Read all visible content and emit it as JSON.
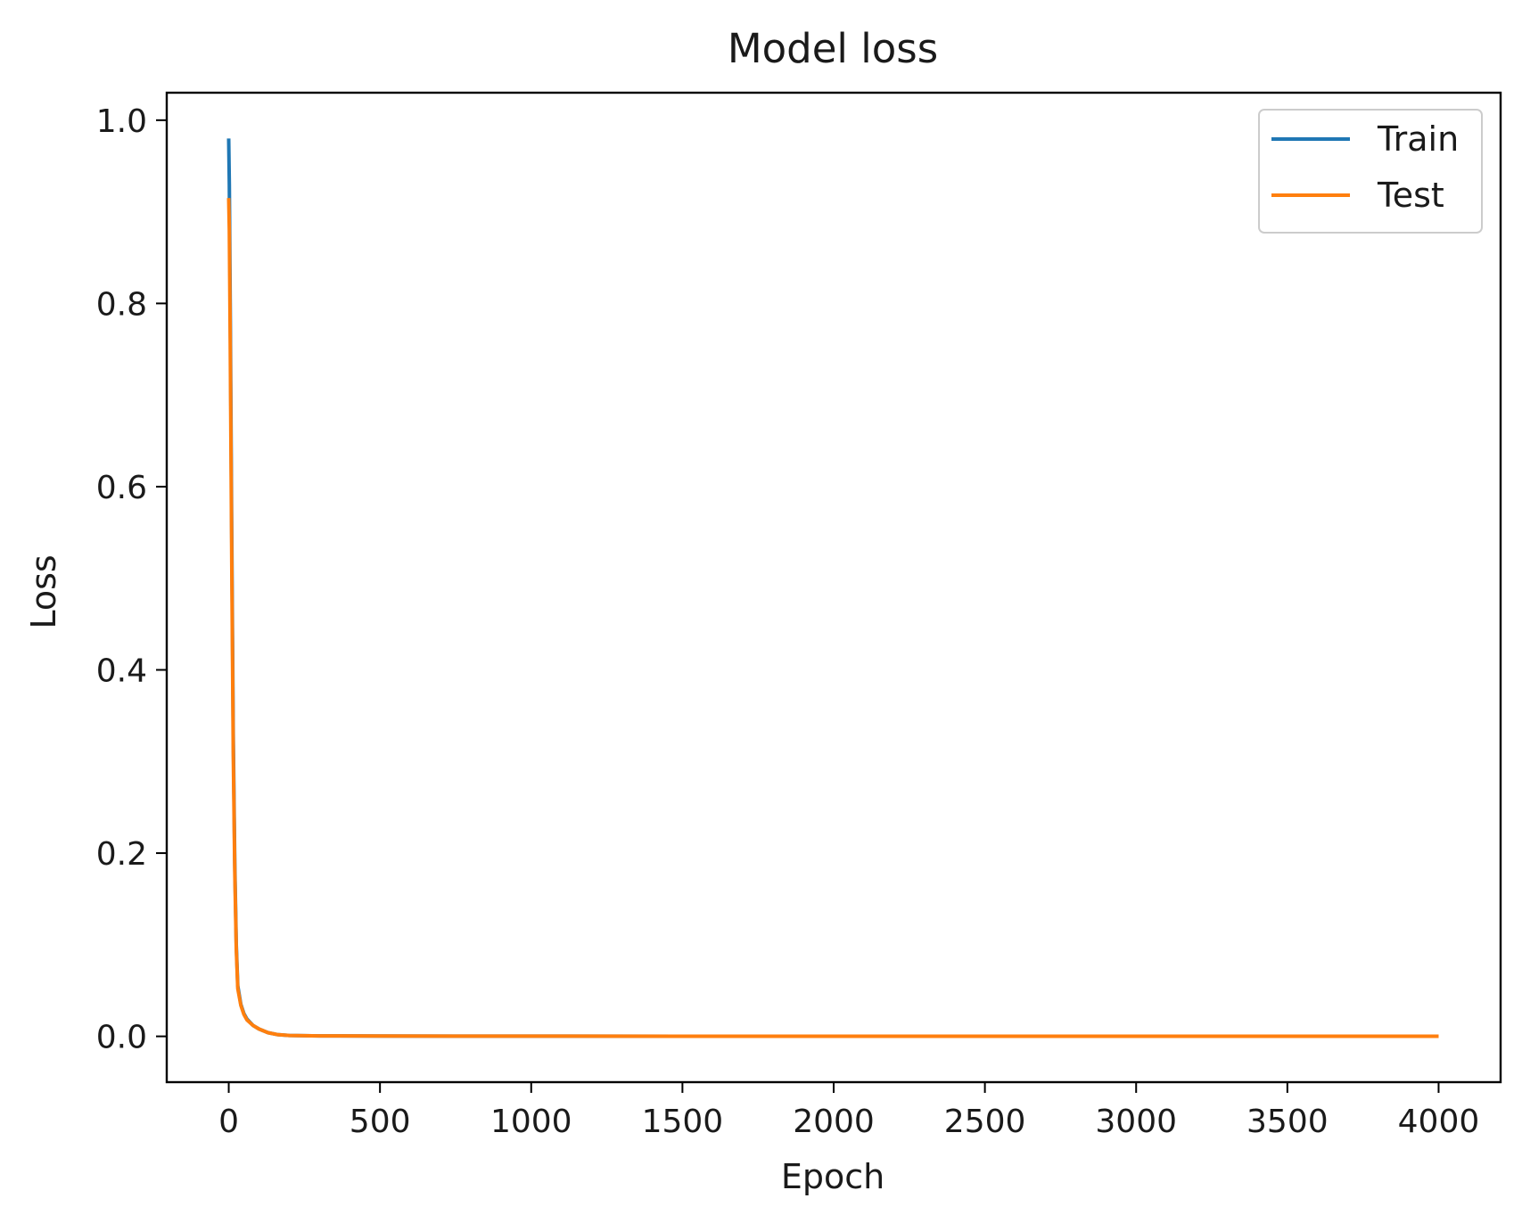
{
  "chart_data": {
    "type": "line",
    "title": "Model loss",
    "xlabel": "Epoch",
    "ylabel": "Loss",
    "xlim": [
      -205,
      4205
    ],
    "ylim": [
      -0.05,
      1.03
    ],
    "xticks": [
      0,
      500,
      1000,
      1500,
      2000,
      2500,
      3000,
      3500,
      4000
    ],
    "xtick_labels": [
      "0",
      "500",
      "1000",
      "1500",
      "2000",
      "2500",
      "3000",
      "3500",
      "4000"
    ],
    "yticks": [
      0.0,
      0.2,
      0.4,
      0.6,
      0.8,
      1.0
    ],
    "ytick_labels": [
      "0.0",
      "0.2",
      "0.4",
      "0.6",
      "0.8",
      "1.0"
    ],
    "grid": false,
    "legend": "upper-right",
    "series": [
      {
        "name": "Train",
        "color": "#1f77b4",
        "x": [
          0,
          2,
          5,
          10,
          15,
          20,
          25,
          30,
          40,
          50,
          60,
          80,
          100,
          130,
          160,
          200,
          300,
          500,
          1000,
          2000,
          3000,
          4000
        ],
        "y": [
          0.98,
          0.93,
          0.8,
          0.55,
          0.33,
          0.19,
          0.1,
          0.055,
          0.035,
          0.025,
          0.019,
          0.012,
          0.008,
          0.004,
          0.002,
          0.001,
          0.0005,
          0.0003,
          0.0002,
          0.0001,
          0.0001,
          0.0001
        ]
      },
      {
        "name": "Test",
        "color": "#ff7f0e",
        "x": [
          0,
          2,
          5,
          10,
          15,
          20,
          25,
          30,
          40,
          50,
          60,
          80,
          100,
          130,
          160,
          200,
          300,
          500,
          1000,
          2000,
          3000,
          4000
        ],
        "y": [
          0.915,
          0.88,
          0.76,
          0.52,
          0.31,
          0.18,
          0.095,
          0.052,
          0.034,
          0.024,
          0.018,
          0.012,
          0.008,
          0.004,
          0.002,
          0.001,
          0.0005,
          0.0003,
          0.0002,
          0.0001,
          0.0001,
          0.0001
        ]
      }
    ]
  }
}
